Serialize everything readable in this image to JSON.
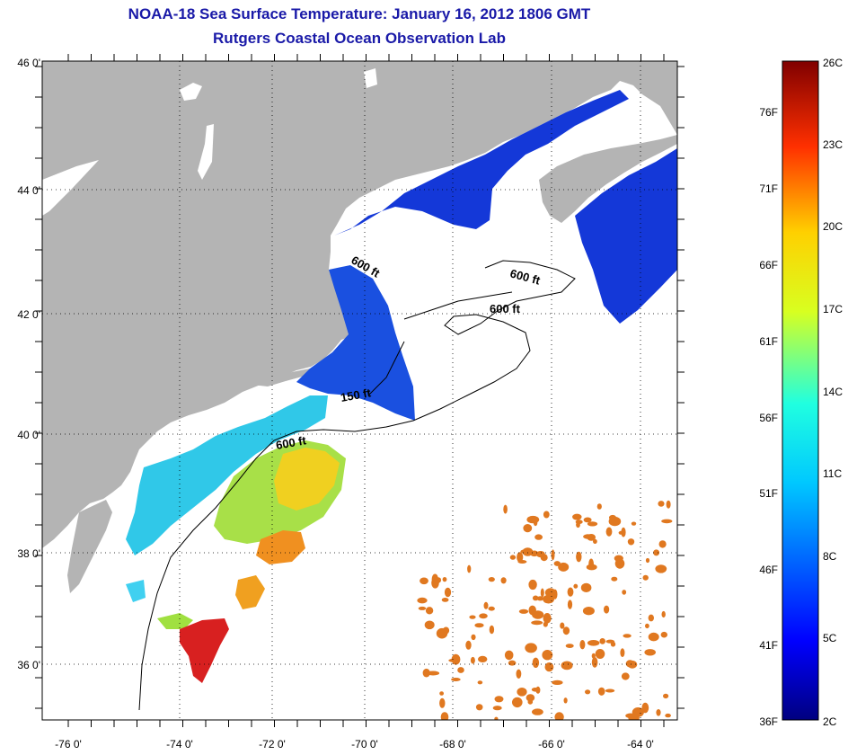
{
  "header": {
    "title": "NOAA-18 Sea Surface Temperature:  January 16, 2012 1806 GMT",
    "subtitle": "Rutgers Coastal Ocean Observation Lab"
  },
  "map": {
    "lat_labels": [
      "46 0'",
      "44 0'",
      "42 0'",
      "40 0'",
      "38 0'",
      "36 0'"
    ],
    "lon_labels": [
      "-76 0'",
      "-74 0'",
      "-72 0'",
      "-70 0'",
      "-68 0'",
      "-66 0'",
      "-64 0'"
    ],
    "contour_labels": [
      "600 ft",
      "600 ft",
      "600 ft",
      "150 ft",
      "600 ft"
    ],
    "colors": {
      "land": "#b4b4b4",
      "water_no_data": "#ffffff",
      "cold": "#1030d8",
      "warm": "#e07820",
      "hot": "#d81818"
    }
  },
  "colorbar": {
    "fahrenheit_labels": [
      "76F",
      "71F",
      "66F",
      "61F",
      "56F",
      "51F",
      "46F",
      "41F",
      "36F"
    ],
    "celsius_labels": [
      "26C",
      "23C",
      "20C",
      "17C",
      "14C",
      "11C",
      "8C",
      "5C",
      "2C"
    ]
  }
}
